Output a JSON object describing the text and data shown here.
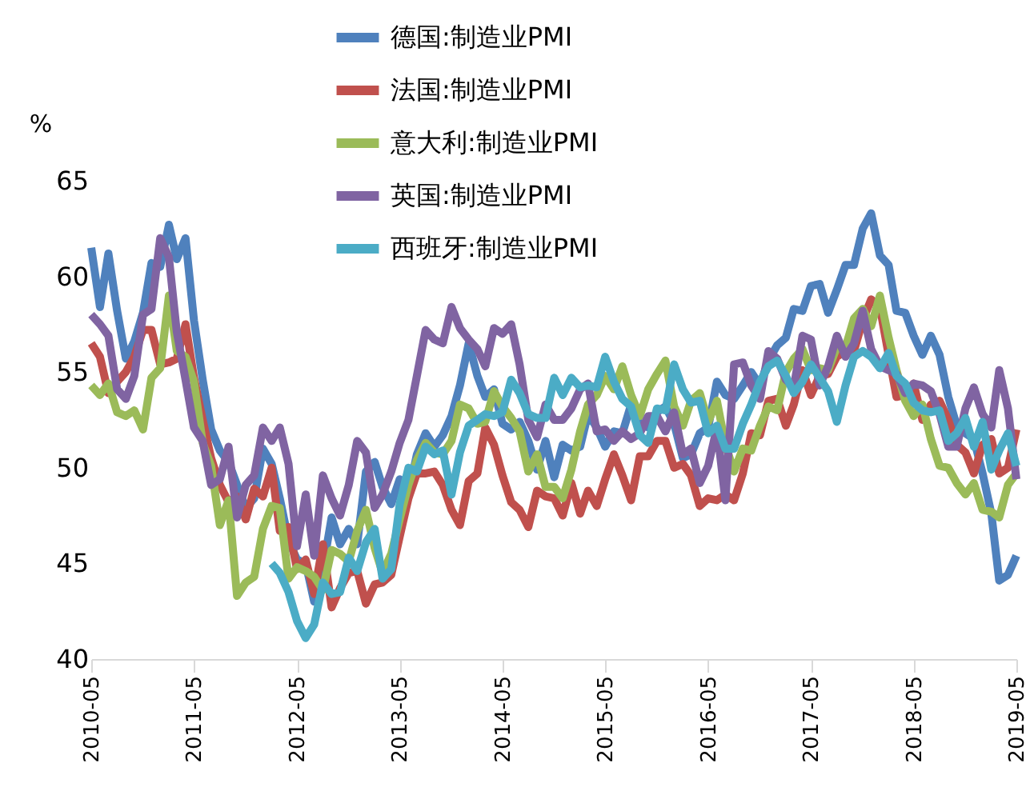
{
  "chart_data": {
    "type": "line",
    "ylabel": "%",
    "x": [
      "2010-05",
      "2010-06",
      "2010-07",
      "2010-08",
      "2010-09",
      "2010-10",
      "2010-11",
      "2010-12",
      "2011-01",
      "2011-02",
      "2011-03",
      "2011-04",
      "2011-05",
      "2011-06",
      "2011-07",
      "2011-08",
      "2011-09",
      "2011-10",
      "2011-11",
      "2011-12",
      "2012-01",
      "2012-02",
      "2012-03",
      "2012-04",
      "2012-05",
      "2012-06",
      "2012-07",
      "2012-08",
      "2012-09",
      "2012-10",
      "2012-11",
      "2012-12",
      "2013-01",
      "2013-02",
      "2013-03",
      "2013-04",
      "2013-05",
      "2013-06",
      "2013-07",
      "2013-08",
      "2013-09",
      "2013-10",
      "2013-11",
      "2013-12",
      "2014-01",
      "2014-02",
      "2014-03",
      "2014-04",
      "2014-05",
      "2014-06",
      "2014-07",
      "2014-08",
      "2014-09",
      "2014-10",
      "2014-11",
      "2014-12",
      "2015-01",
      "2015-02",
      "2015-03",
      "2015-04",
      "2015-05",
      "2015-06",
      "2015-07",
      "2015-08",
      "2015-09",
      "2015-10",
      "2015-11",
      "2015-12",
      "2016-01",
      "2016-02",
      "2016-03",
      "2016-04",
      "2016-05",
      "2016-06",
      "2016-07",
      "2016-08",
      "2016-09",
      "2016-10",
      "2016-11",
      "2016-12",
      "2017-01",
      "2017-02",
      "2017-03",
      "2017-04",
      "2017-05",
      "2017-06",
      "2017-07",
      "2017-08",
      "2017-09",
      "2017-10",
      "2017-11",
      "2017-12",
      "2018-01",
      "2018-02",
      "2018-03",
      "2018-04",
      "2018-05",
      "2018-06",
      "2018-07",
      "2018-08",
      "2018-09",
      "2018-10",
      "2018-11",
      "2018-12",
      "2019-01",
      "2019-02",
      "2019-03",
      "2019-04",
      "2019-05"
    ],
    "xlim": [
      "2010-05",
      "2019-05"
    ],
    "xticks": [
      "2010-05",
      "2011-05",
      "2012-05",
      "2013-05",
      "2014-05",
      "2015-05",
      "2016-05",
      "2017-05",
      "2018-05",
      "2019-05"
    ],
    "ylim": [
      40,
      65
    ],
    "yticks": [
      40,
      45,
      50,
      55,
      60,
      65
    ],
    "grid": false,
    "legend": "top",
    "marker": "none",
    "line_style": "solid",
    "series": [
      {
        "name": "德国:制造业PMI",
        "color": "#4f81bd",
        "values": [
          61.5,
          58.4,
          61.2,
          58.2,
          55.7,
          56.6,
          58.1,
          60.7,
          60.5,
          62.7,
          60.9,
          62.0,
          57.7,
          54.6,
          52.0,
          50.9,
          50.3,
          49.1,
          47.9,
          48.4,
          51.0,
          50.2,
          48.4,
          46.2,
          45.2,
          45.0,
          43.0,
          44.7,
          47.4,
          46.0,
          46.8,
          46.0,
          49.8,
          50.3,
          49.0,
          48.1,
          49.4,
          48.6,
          50.7,
          51.8,
          51.1,
          51.7,
          52.7,
          54.3,
          56.5,
          54.8,
          53.7,
          54.1,
          52.3,
          52.0,
          52.4,
          51.4,
          49.9,
          51.4,
          49.5,
          51.2,
          50.9,
          51.1,
          52.8,
          52.1,
          51.1,
          51.9,
          51.8,
          53.3,
          52.3,
          52.1,
          52.9,
          53.2,
          52.3,
          50.5,
          50.7,
          51.8,
          52.1,
          54.5,
          53.8,
          53.6,
          54.3,
          55.0,
          54.3,
          55.6,
          56.4,
          56.8,
          58.3,
          58.2,
          59.5,
          59.6,
          58.1,
          59.3,
          60.6,
          60.6,
          62.5,
          63.3,
          61.1,
          60.6,
          58.2,
          58.1,
          56.9,
          55.9,
          56.9,
          55.9,
          53.7,
          52.2,
          51.8,
          51.5,
          49.7,
          47.6,
          44.1,
          44.4,
          45.4
        ]
      },
      {
        "name": "法国:制造业PMI",
        "color": "#c0504d",
        "values": [
          56.5,
          55.8,
          53.9,
          54.5,
          55.0,
          55.8,
          57.2,
          57.2,
          55.4,
          55.5,
          55.7,
          57.5,
          54.7,
          52.5,
          50.5,
          49.1,
          48.2,
          48.5,
          47.3,
          48.9,
          48.5,
          50.0,
          46.7,
          46.9,
          44.7,
          45.2,
          43.4,
          46.0,
          42.7,
          43.7,
          44.5,
          44.6,
          42.9,
          43.9,
          44.0,
          44.4,
          46.4,
          48.4,
          49.7,
          49.7,
          49.8,
          49.1,
          47.8,
          47.0,
          49.3,
          49.7,
          52.1,
          51.2,
          49.6,
          48.2,
          47.8,
          46.9,
          48.8,
          48.5,
          48.4,
          47.5,
          49.2,
          47.6,
          48.8,
          48.0,
          49.4,
          50.7,
          49.6,
          48.3,
          50.6,
          50.6,
          51.4,
          51.4,
          50.0,
          50.2,
          49.6,
          48.0,
          48.4,
          48.3,
          48.6,
          48.3,
          49.7,
          51.8,
          51.7,
          53.5,
          53.6,
          52.2,
          53.3,
          55.1,
          53.8,
          54.8,
          54.9,
          55.8,
          56.1,
          56.1,
          57.7,
          58.8,
          58.4,
          55.9,
          53.7,
          53.8,
          54.4,
          52.5,
          53.3,
          53.5,
          52.5,
          51.2,
          50.8,
          49.7,
          51.2,
          51.5,
          49.7,
          50.0,
          52.0
        ]
      },
      {
        "name": "意大利:制造业PMI",
        "color": "#9bbb59",
        "values": [
          54.3,
          53.8,
          54.4,
          52.9,
          52.7,
          53.0,
          52.0,
          54.7,
          55.2,
          59.0,
          56.1,
          55.8,
          54.5,
          51.3,
          50.1,
          47.0,
          48.3,
          43.3,
          44.0,
          44.3,
          46.8,
          48.0,
          47.9,
          44.2,
          44.8,
          44.6,
          44.3,
          43.6,
          45.7,
          45.5,
          45.1,
          46.7,
          47.8,
          45.8,
          44.5,
          45.5,
          47.3,
          49.1,
          50.4,
          51.3,
          50.8,
          50.7,
          51.4,
          53.3,
          53.1,
          52.3,
          52.4,
          54.0,
          53.2,
          52.6,
          51.9,
          49.8,
          50.7,
          49.0,
          49.0,
          48.4,
          49.9,
          51.9,
          53.3,
          53.8,
          54.8,
          54.1,
          55.3,
          53.8,
          52.7,
          54.1,
          54.9,
          55.6,
          53.2,
          52.2,
          53.5,
          53.9,
          52.4,
          53.5,
          51.2,
          49.8,
          51.0,
          50.9,
          52.2,
          53.2,
          53.0,
          55.0,
          55.7,
          56.2,
          55.1,
          55.2,
          55.1,
          56.3,
          56.3,
          57.8,
          58.3,
          57.4,
          59.0,
          56.8,
          55.1,
          53.5,
          52.7,
          53.3,
          51.5,
          50.1,
          50.0,
          49.2,
          48.6,
          49.2,
          47.8,
          47.7,
          47.4,
          49.1,
          49.7
        ]
      },
      {
        "name": "英国:制造业PMI",
        "color": "#8064a2",
        "values": [
          58.0,
          57.5,
          56.9,
          54.1,
          53.6,
          54.8,
          58.0,
          58.3,
          62.0,
          61.0,
          57.1,
          54.6,
          52.1,
          51.4,
          49.1,
          49.4,
          51.1,
          47.4,
          49.1,
          49.6,
          52.1,
          51.4,
          52.1,
          50.2,
          45.9,
          48.6,
          45.4,
          49.6,
          48.4,
          47.5,
          49.1,
          51.4,
          50.8,
          47.9,
          48.6,
          49.8,
          51.3,
          52.5,
          54.8,
          57.2,
          56.7,
          56.5,
          58.4,
          57.3,
          56.7,
          56.2,
          55.3,
          57.3,
          57.0,
          57.5,
          55.4,
          52.5,
          51.6,
          53.3,
          52.5,
          52.5,
          53.1,
          54.1,
          54.4,
          51.9,
          52.0,
          51.4,
          51.9,
          51.5,
          51.8,
          52.7,
          52.7,
          51.9,
          52.9,
          50.7,
          51.0,
          49.2,
          50.1,
          52.1,
          48.3,
          55.4,
          55.5,
          54.3,
          53.6,
          56.1,
          55.7,
          54.6,
          54.2,
          56.9,
          56.7,
          54.3,
          55.3,
          56.9,
          55.8,
          56.5,
          58.2,
          56.2,
          55.3,
          55.1,
          54.9,
          53.9,
          54.4,
          54.3,
          54.0,
          52.8,
          51.1,
          51.1,
          53.1,
          54.2,
          52.8,
          52.1,
          55.1,
          53.1,
          49.4
        ]
      },
      {
        "name": "西班牙:制造业PMI",
        "color": "#4bacc6",
        "values": [
          null,
          null,
          null,
          null,
          null,
          null,
          null,
          null,
          null,
          null,
          null,
          null,
          null,
          null,
          null,
          null,
          null,
          null,
          null,
          null,
          null,
          45.0,
          44.5,
          43.5,
          42.0,
          41.1,
          41.8,
          44.0,
          43.4,
          43.5,
          45.3,
          44.6,
          46.1,
          46.8,
          44.2,
          44.7,
          48.1,
          50.0,
          49.8,
          51.1,
          50.7,
          50.9,
          48.6,
          50.8,
          52.2,
          52.5,
          52.8,
          52.7,
          52.9,
          54.6,
          53.9,
          52.8,
          52.6,
          52.6,
          54.7,
          53.8,
          54.7,
          54.2,
          54.3,
          54.2,
          55.8,
          54.5,
          53.6,
          53.2,
          51.7,
          51.3,
          53.1,
          53.0,
          55.4,
          54.1,
          53.4,
          53.5,
          51.8,
          52.2,
          51.0,
          51.0,
          52.3,
          53.3,
          54.5,
          55.3,
          55.6,
          54.8,
          53.9,
          54.5,
          55.4,
          54.7,
          54.0,
          52.4,
          54.3,
          55.8,
          56.1,
          55.8,
          55.2,
          56.0,
          54.8,
          54.4,
          53.4,
          53.0,
          52.9,
          53.0,
          51.4,
          51.8,
          52.6,
          51.1,
          52.4,
          49.9,
          50.9,
          51.8,
          50.1
        ]
      }
    ]
  }
}
